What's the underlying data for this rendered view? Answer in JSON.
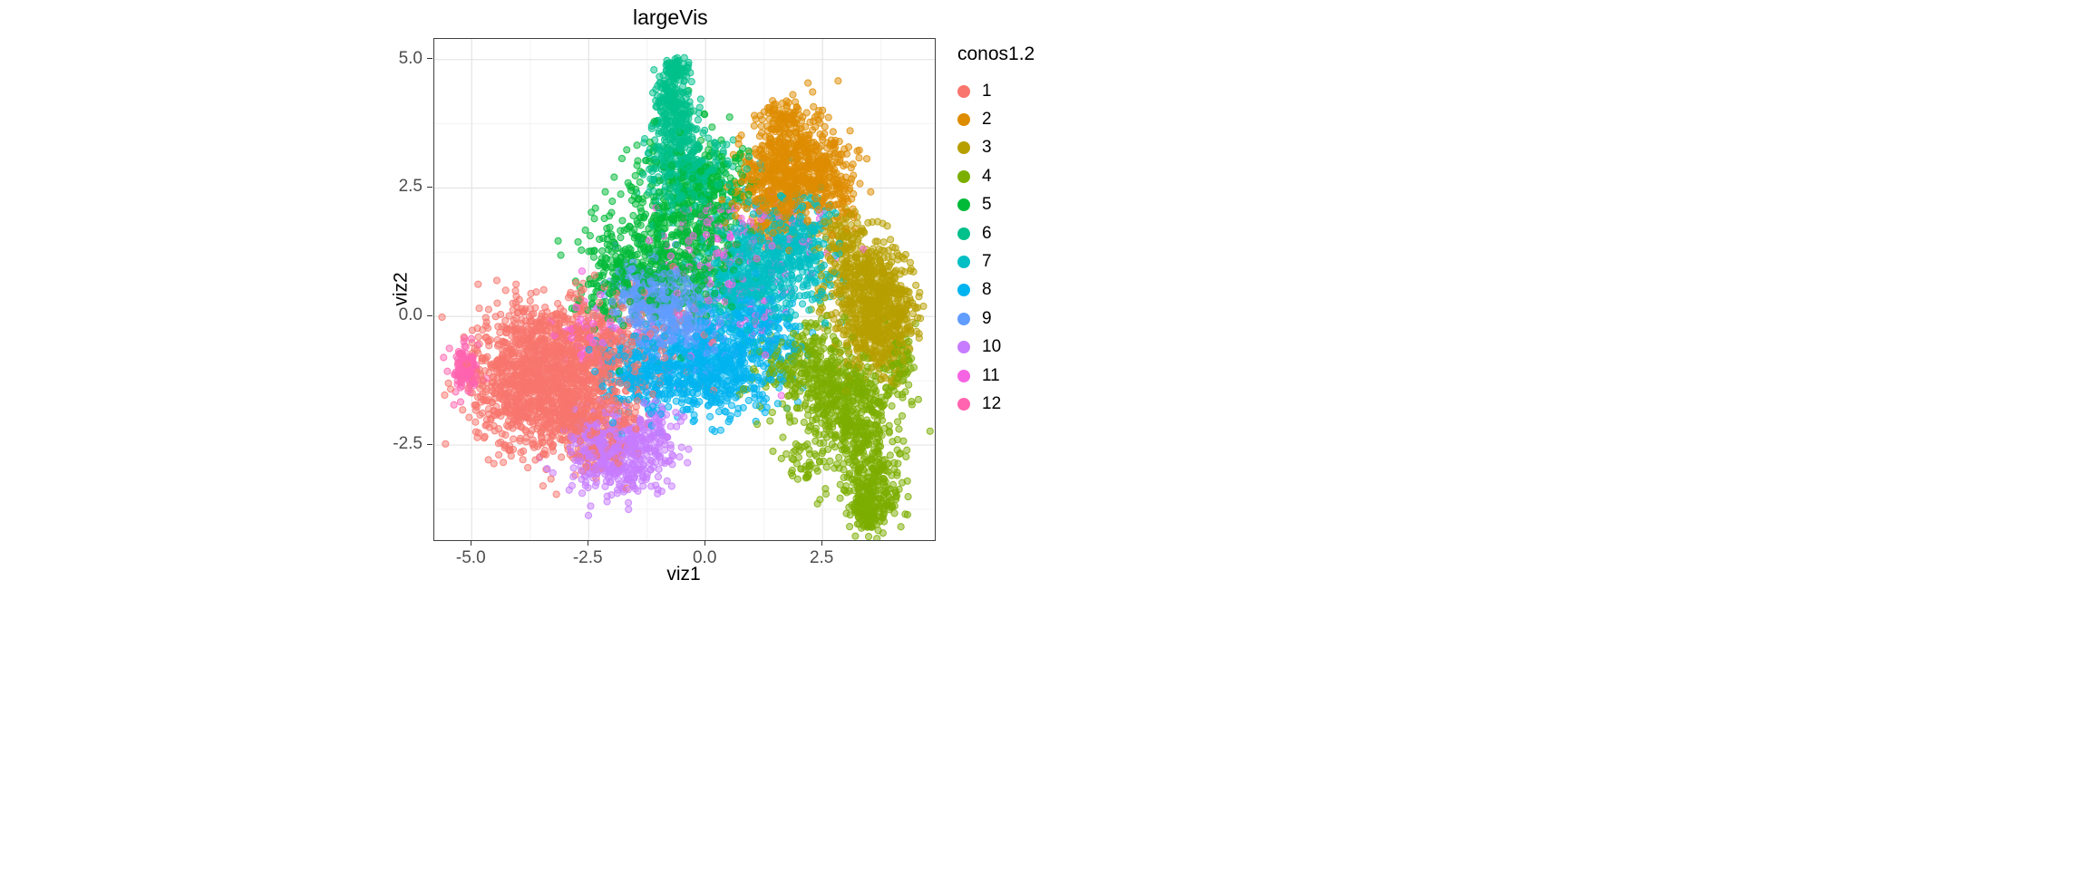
{
  "chart_data": {
    "type": "scatter",
    "title": "largeVis",
    "xlabel": "viz1",
    "ylabel": "viz2",
    "legend_title": "conos1.2",
    "legend_position": "right",
    "xlim": [
      -5.8,
      4.9
    ],
    "ylim": [
      -4.35,
      5.4
    ],
    "x_ticks": [
      {
        "v": -5.0,
        "label": "-5.0"
      },
      {
        "v": -2.5,
        "label": "-2.5"
      },
      {
        "v": 0.0,
        "label": "0.0"
      },
      {
        "v": 2.5,
        "label": "2.5"
      }
    ],
    "y_ticks": [
      {
        "v": 5.0,
        "label": "5.0"
      },
      {
        "v": 2.5,
        "label": "2.5"
      },
      {
        "v": 0.0,
        "label": "0.0"
      },
      {
        "v": -2.5,
        "label": "-2.5"
      }
    ],
    "x_minor": [
      -3.75,
      -1.25,
      1.25,
      3.75
    ],
    "y_minor": [
      3.75,
      1.25,
      -1.25,
      -3.75
    ],
    "grid": {
      "major_color": "#E4E4E4",
      "minor_color": "#F2F2F2",
      "on": true
    },
    "panel_border_color": "#404040",
    "point_radius": 3.6,
    "point_fill_alpha": 0.5,
    "point_stroke_alpha": 0.8,
    "clusters": [
      {
        "label": "1",
        "color": "#F8766D",
        "blobs": [
          [
            -3.4,
            -1.5,
            0.7,
            0.6,
            800
          ],
          [
            -2.6,
            -0.7,
            0.65,
            0.55,
            450
          ],
          [
            -3.9,
            -0.4,
            0.45,
            0.4,
            200
          ],
          [
            -2.3,
            -2.1,
            0.5,
            0.45,
            200
          ],
          [
            -4.3,
            -1.3,
            0.4,
            0.4,
            150
          ],
          [
            -1.4,
            -0.4,
            0.7,
            0.6,
            80
          ]
        ]
      },
      {
        "label": "2",
        "color": "#DE8C00",
        "blobs": [
          [
            1.9,
            3.0,
            0.5,
            0.45,
            450
          ],
          [
            1.3,
            2.4,
            0.4,
            0.4,
            200
          ],
          [
            2.5,
            2.7,
            0.3,
            0.4,
            130
          ],
          [
            1.7,
            3.9,
            0.3,
            0.2,
            60
          ],
          [
            2.9,
            2.2,
            0.2,
            0.3,
            40
          ],
          [
            1.6,
            1.9,
            0.3,
            0.3,
            60
          ]
        ]
      },
      {
        "label": "3",
        "color": "#B79F00",
        "blobs": [
          [
            3.55,
            0.3,
            0.4,
            0.55,
            500
          ],
          [
            3.2,
            1.1,
            0.35,
            0.35,
            150
          ],
          [
            3.7,
            -0.6,
            0.3,
            0.35,
            150
          ],
          [
            4.2,
            0.0,
            0.2,
            0.4,
            80
          ],
          [
            2.8,
            1.6,
            0.25,
            0.25,
            50
          ]
        ]
      },
      {
        "label": "4",
        "color": "#7CAE00",
        "blobs": [
          [
            2.9,
            -1.5,
            0.5,
            0.45,
            350
          ],
          [
            3.3,
            -2.4,
            0.4,
            0.5,
            250
          ],
          [
            3.6,
            -3.3,
            0.3,
            0.35,
            180
          ],
          [
            3.5,
            -3.85,
            0.2,
            0.18,
            100
          ],
          [
            2.2,
            -0.8,
            0.4,
            0.4,
            130
          ],
          [
            1.6,
            -1.2,
            0.45,
            0.4,
            70
          ],
          [
            4.15,
            -1.0,
            0.18,
            0.35,
            70
          ],
          [
            2.1,
            -2.9,
            0.25,
            0.25,
            40
          ]
        ]
      },
      {
        "label": "5",
        "color": "#00BA38",
        "blobs": [
          [
            -0.7,
            1.6,
            0.7,
            0.75,
            450
          ],
          [
            -1.5,
            0.9,
            0.5,
            0.45,
            180
          ],
          [
            0.0,
            2.5,
            0.45,
            0.5,
            180
          ],
          [
            -2.1,
            0.5,
            0.3,
            0.3,
            60
          ],
          [
            -0.2,
            0.8,
            0.4,
            0.4,
            80
          ]
        ]
      },
      {
        "label": "6",
        "color": "#00C08B",
        "blobs": [
          [
            -0.65,
            3.2,
            0.3,
            0.4,
            200
          ],
          [
            -0.7,
            4.1,
            0.2,
            0.35,
            180
          ],
          [
            -0.65,
            4.8,
            0.13,
            0.12,
            80
          ],
          [
            -0.3,
            2.5,
            0.4,
            0.35,
            140
          ],
          [
            0.1,
            2.9,
            0.3,
            0.3,
            60
          ]
        ]
      },
      {
        "label": "7",
        "color": "#00BFC4",
        "blobs": [
          [
            1.3,
            1.1,
            0.6,
            0.6,
            450
          ],
          [
            0.7,
            0.5,
            0.4,
            0.4,
            150
          ],
          [
            1.9,
            1.7,
            0.4,
            0.4,
            150
          ],
          [
            2.3,
            0.9,
            0.3,
            0.4,
            60
          ]
        ]
      },
      {
        "label": "8",
        "color": "#00B4F0",
        "blobs": [
          [
            0.2,
            -1.0,
            0.6,
            0.45,
            450
          ],
          [
            -0.8,
            -1.2,
            0.6,
            0.4,
            250
          ],
          [
            -1.6,
            -1.0,
            0.4,
            0.35,
            120
          ],
          [
            0.9,
            -0.2,
            0.5,
            0.45,
            200
          ],
          [
            1.6,
            -0.5,
            0.3,
            0.35,
            60
          ]
        ]
      },
      {
        "label": "9",
        "color": "#619CFF",
        "blobs": [
          [
            -0.9,
            0.1,
            0.5,
            0.5,
            350
          ],
          [
            -1.5,
            0.4,
            0.35,
            0.35,
            120
          ],
          [
            -0.2,
            -0.3,
            0.4,
            0.4,
            80
          ]
        ]
      },
      {
        "label": "10",
        "color": "#C77CFF",
        "blobs": [
          [
            -1.8,
            -2.7,
            0.5,
            0.4,
            380
          ],
          [
            -2.4,
            -2.4,
            0.3,
            0.3,
            100
          ],
          [
            -1.1,
            -2.3,
            0.3,
            0.3,
            70
          ]
        ]
      },
      {
        "label": "11",
        "color": "#F564E3",
        "blobs": [
          [
            0.6,
            0.6,
            0.8,
            0.7,
            110
          ],
          [
            1.6,
            1.5,
            0.5,
            0.5,
            70
          ],
          [
            -2.4,
            -0.35,
            0.4,
            0.35,
            70
          ],
          [
            0.0,
            1.5,
            0.5,
            0.5,
            50
          ]
        ]
      },
      {
        "label": "12",
        "color": "#FF64B0",
        "blobs": [
          [
            -5.1,
            -1.0,
            0.15,
            0.2,
            140
          ]
        ]
      }
    ]
  }
}
